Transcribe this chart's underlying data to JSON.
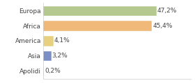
{
  "categories": [
    "Europa",
    "Africa",
    "America",
    "Asia",
    "Apolidi"
  ],
  "values": [
    47.2,
    45.4,
    4.1,
    3.2,
    0.2
  ],
  "labels": [
    "47,2%",
    "45,4%",
    "4,1%",
    "3,2%",
    "0,2%"
  ],
  "bar_colors": [
    "#b5c98e",
    "#f0b97a",
    "#e8d080",
    "#7b8fc7",
    "#ffffff"
  ],
  "bar_edge_colors": [
    "#b5c98e",
    "#f0b97a",
    "#e8d080",
    "#7b8fc7",
    "#cccccc"
  ],
  "background_color": "#ffffff",
  "xlim": [
    0,
    62
  ],
  "label_fontsize": 6.5,
  "tick_fontsize": 6.5,
  "bar_height": 0.62
}
